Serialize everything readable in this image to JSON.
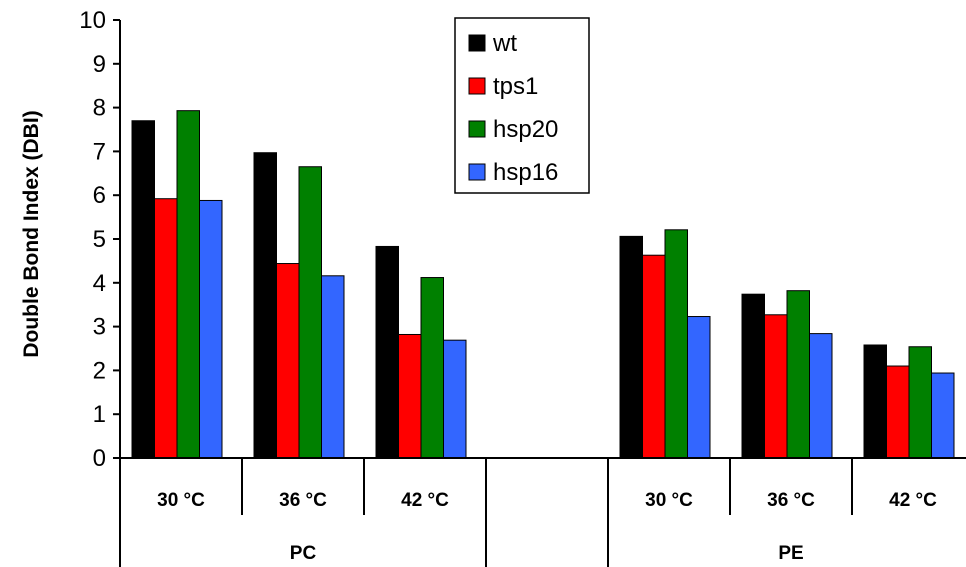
{
  "chart_data": {
    "type": "bar",
    "ylabel": "Double Bond Index (DBI)",
    "ylim": [
      0,
      10
    ],
    "yticks": [
      "0",
      "1",
      "2",
      "3",
      "4",
      "5",
      "6",
      "7",
      "8",
      "9",
      "10"
    ],
    "grid": false,
    "legend_position": "top-center",
    "groups": [
      {
        "label": "PC",
        "categories": [
          "30 °C",
          "36 °C",
          "42 °C"
        ],
        "series": [
          {
            "name": "wt",
            "values": [
              7.7,
              6.97,
              4.83
            ]
          },
          {
            "name": "tps1",
            "values": [
              5.92,
              4.44,
              2.82
            ]
          },
          {
            "name": "hsp20",
            "values": [
              7.93,
              6.65,
              4.12
            ]
          },
          {
            "name": "hsp16",
            "values": [
              5.88,
              4.16,
              2.69
            ]
          }
        ]
      },
      {
        "label": "PE",
        "categories": [
          "30 °C",
          "36 °C",
          "42 °C"
        ],
        "series": [
          {
            "name": "wt",
            "values": [
              5.06,
              3.74,
              2.58
            ]
          },
          {
            "name": "tps1",
            "values": [
              4.63,
              3.27,
              2.1
            ]
          },
          {
            "name": "hsp20",
            "values": [
              5.21,
              3.82,
              2.54
            ]
          },
          {
            "name": "hsp16",
            "values": [
              3.23,
              2.84,
              1.94
            ]
          }
        ]
      }
    ],
    "series_colors": {
      "wt": "#000000",
      "tps1": "#ff0000",
      "hsp20": "#008000",
      "hsp16": "#3366ff"
    }
  }
}
